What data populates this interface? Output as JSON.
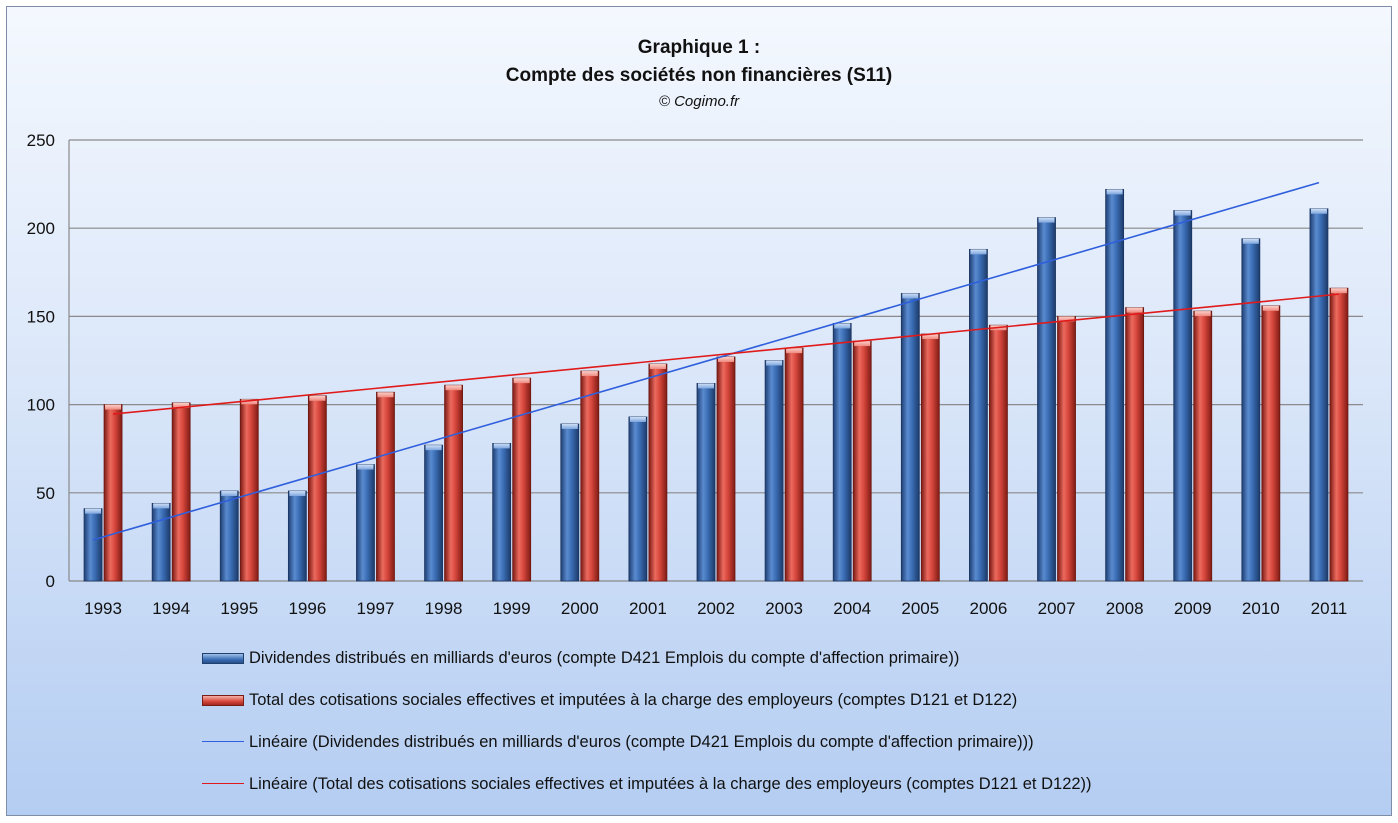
{
  "title_line1": "Graphique 1 :",
  "title_line2": "Compte des sociétés non financières (S11)",
  "credit": "© Cogimo.fr",
  "chart_data": {
    "type": "bar",
    "categories": [
      "1993",
      "1994",
      "1995",
      "1996",
      "1997",
      "1998",
      "1999",
      "2000",
      "2001",
      "2002",
      "2003",
      "2004",
      "2005",
      "2006",
      "2007",
      "2008",
      "2009",
      "2010",
      "2011"
    ],
    "series": [
      {
        "name": "Dividendes distribués en milliards d'euros (compte D421 Emplois du compte d'affection primaire))",
        "color": "#3a6db4",
        "values": [
          41,
          44,
          51,
          51,
          66,
          77,
          78,
          89,
          93,
          112,
          125,
          146,
          163,
          188,
          206,
          222,
          210,
          194,
          211
        ]
      },
      {
        "name": "Total des cotisations sociales effectives et imputées à la charge des employeurs (comptes D121 et D122)",
        "color": "#d6463c",
        "values": [
          100,
          101,
          103,
          105,
          107,
          111,
          115,
          119,
          123,
          127,
          132,
          136,
          140,
          145,
          150,
          155,
          153,
          156,
          166
        ]
      }
    ],
    "trendlines": [
      {
        "name": "Linéaire (Dividendes distribués en milliards d'euros (compte D421 Emplois du compte d'affection primaire)))",
        "color": "#2f5fdc",
        "series_index": 0
      },
      {
        "name": "Linéaire (Total des cotisations sociales effectives et imputées à la charge des employeurs (comptes D121 et D122))",
        "color": "#e01a1a",
        "series_index": 1
      }
    ],
    "ylim": [
      0,
      250
    ],
    "yticks": [
      0,
      50,
      100,
      150,
      200,
      250
    ],
    "grid": true,
    "legend_position": "bottom"
  }
}
